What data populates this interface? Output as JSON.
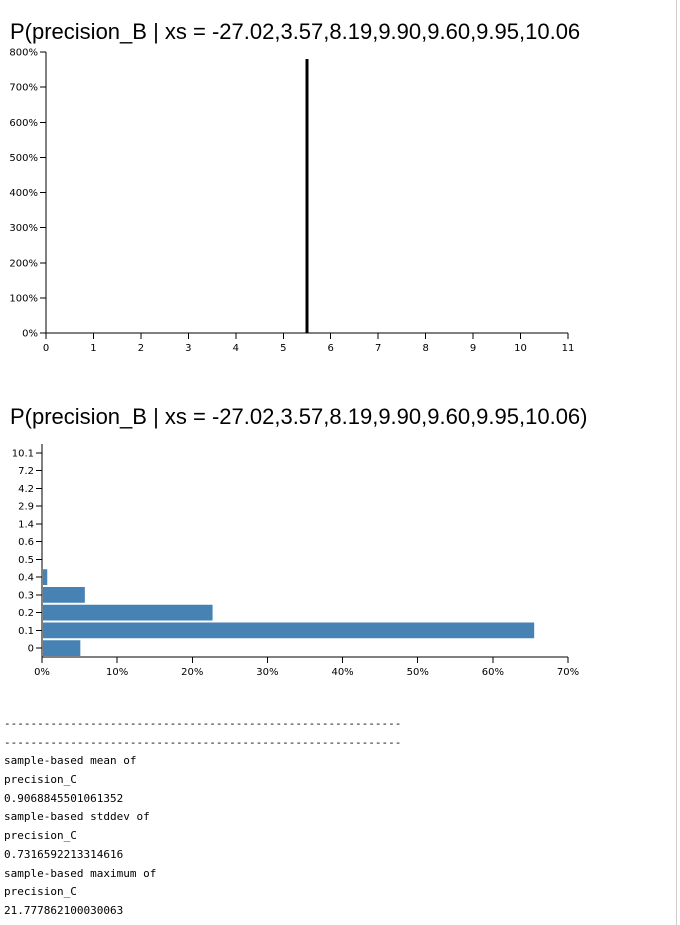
{
  "chart_data": [
    {
      "type": "bar",
      "title": "P(precision_B | xs = -27.02,3.57,8.19,9.90,9.60,9.95,10.06",
      "xlabel": "",
      "ylabel": "",
      "xlim": [
        0,
        11
      ],
      "ylim": [
        0,
        8
      ],
      "x_ticks": [
        0,
        1,
        2,
        3,
        4,
        5,
        6,
        7,
        8,
        9,
        10,
        11
      ],
      "y_ticks": [
        "0%",
        "100%",
        "200%",
        "300%",
        "400%",
        "500%",
        "600%",
        "700%",
        "800%"
      ],
      "y_tick_values": [
        0,
        1,
        2,
        3,
        4,
        5,
        6,
        7,
        8
      ],
      "x": [
        5.5
      ],
      "values": [
        7.8
      ],
      "bar_color": "#000000"
    },
    {
      "type": "bar",
      "orientation": "horizontal",
      "title": "P(precision_B | xs = -27.02,3.57,8.19,9.90,9.60,9.95,10.06)",
      "xlabel": "",
      "ylabel": "",
      "xlim": [
        0,
        0.7
      ],
      "categories": [
        "0",
        "0.1",
        "0.2",
        "0.3",
        "0.4",
        "0.5",
        "0.6",
        "1.4",
        "2.9",
        "4.2",
        "7.2",
        "10.1"
      ],
      "values": [
        0.051,
        0.655,
        0.227,
        0.057,
        0.007,
        0,
        0,
        0,
        0,
        0,
        0,
        0
      ],
      "x_ticks": [
        "0%",
        "10%",
        "20%",
        "30%",
        "40%",
        "50%",
        "60%",
        "70%"
      ],
      "x_tick_values": [
        0,
        0.1,
        0.2,
        0.3,
        0.4,
        0.5,
        0.6,
        0.7
      ],
      "bar_color": "#4682b4"
    }
  ],
  "output": {
    "lines": [
      "------------------------------------------------------------",
      "------------------------------------------------------------",
      "sample-based mean of",
      "precision_C",
      "0.9068845501061352",
      "sample-based stddev of",
      "precision_C",
      "0.7316592213314616",
      "sample-based maximum of",
      "precision_C",
      "21.777862100030063"
    ]
  }
}
